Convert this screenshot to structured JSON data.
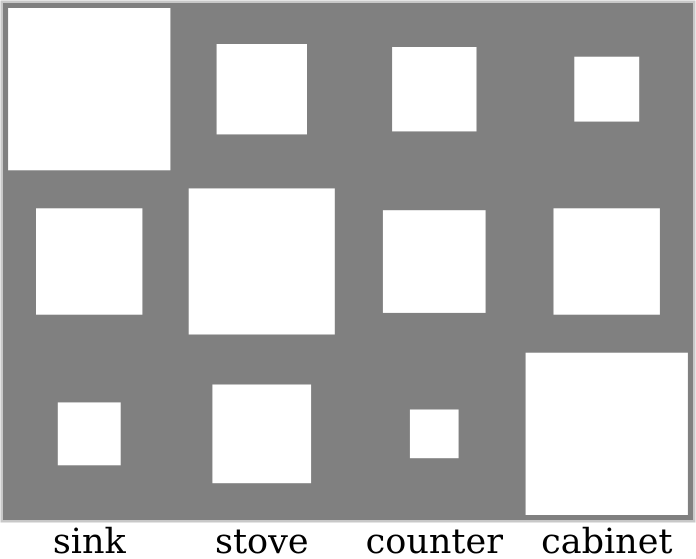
{
  "chart_data": {
    "type": "heatmap",
    "cell_style": "squares sized by value",
    "columns": [
      "sink",
      "stove",
      "counter",
      "cabinet"
    ],
    "rows": 3,
    "values": [
      [
        1.0,
        0.31,
        0.27,
        0.16
      ],
      [
        0.43,
        0.81,
        0.4,
        0.43
      ],
      [
        0.15,
        0.37,
        0.09,
        1.0
      ]
    ],
    "colors": {
      "background": "#808080",
      "square": "#ffffff",
      "text": "#000000"
    }
  }
}
